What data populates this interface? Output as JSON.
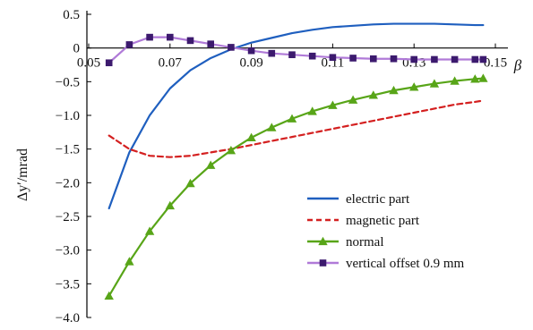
{
  "chart_data": {
    "type": "line",
    "xlabel": "β",
    "ylabel": "Δy′/mrad",
    "xlim": [
      0.05,
      0.15
    ],
    "ylim": [
      -4.0,
      0.5
    ],
    "x_ticks": [
      0.05,
      0.07,
      0.09,
      0.11,
      0.13,
      0.15
    ],
    "x_tick_labels": [
      "0.05",
      "0.07",
      "0.09",
      "0.11",
      "0.13",
      "0.15"
    ],
    "y_ticks": [
      0.5,
      0,
      -0.5,
      -1.0,
      -1.5,
      -2.0,
      -2.5,
      -3.0,
      -3.5,
      -4.0
    ],
    "y_tick_labels": [
      "0.5",
      "0",
      "−0.5",
      "−1.0",
      "−1.5",
      "−2.0",
      "−2.5",
      "−3.0",
      "−3.5",
      "−4.0"
    ],
    "grid": false,
    "legend_position": "lower-right",
    "series": [
      {
        "name": "electric part",
        "color": "#1f5fbf",
        "style": "solid",
        "marker": "none",
        "x": [
          0.055,
          0.06,
          0.065,
          0.07,
          0.075,
          0.08,
          0.085,
          0.09,
          0.095,
          0.1,
          0.105,
          0.11,
          0.115,
          0.12,
          0.125,
          0.13,
          0.135,
          0.14,
          0.145,
          0.147
        ],
        "y": [
          -2.38,
          -1.55,
          -1.0,
          -0.6,
          -0.33,
          -0.15,
          -0.02,
          0.08,
          0.15,
          0.22,
          0.27,
          0.31,
          0.33,
          0.35,
          0.36,
          0.36,
          0.36,
          0.35,
          0.34,
          0.34
        ]
      },
      {
        "name": "magnetic part",
        "color": "#d42020",
        "style": "dashed",
        "marker": "none",
        "x": [
          0.055,
          0.06,
          0.065,
          0.07,
          0.075,
          0.08,
          0.085,
          0.09,
          0.095,
          0.1,
          0.105,
          0.11,
          0.115,
          0.12,
          0.125,
          0.13,
          0.135,
          0.14,
          0.145,
          0.147
        ],
        "y": [
          -1.3,
          -1.5,
          -1.6,
          -1.62,
          -1.6,
          -1.55,
          -1.5,
          -1.44,
          -1.38,
          -1.32,
          -1.26,
          -1.2,
          -1.14,
          -1.08,
          -1.02,
          -0.96,
          -0.9,
          -0.84,
          -0.8,
          -0.78
        ]
      },
      {
        "name": "normal",
        "color": "#58a518",
        "style": "solid",
        "marker": "triangle",
        "x": [
          0.055,
          0.06,
          0.065,
          0.07,
          0.075,
          0.08,
          0.085,
          0.09,
          0.095,
          0.1,
          0.105,
          0.11,
          0.115,
          0.12,
          0.125,
          0.13,
          0.135,
          0.14,
          0.145,
          0.147
        ],
        "y": [
          -3.68,
          -3.17,
          -2.72,
          -2.34,
          -2.01,
          -1.74,
          -1.52,
          -1.33,
          -1.18,
          -1.05,
          -0.94,
          -0.85,
          -0.77,
          -0.7,
          -0.63,
          -0.58,
          -0.53,
          -0.49,
          -0.46,
          -0.45
        ]
      },
      {
        "name": "vertical offset 0.9 mm",
        "color": "#3c1a6e",
        "style": "solid",
        "marker": "square",
        "line_color": "#b07ad8",
        "x": [
          0.055,
          0.06,
          0.065,
          0.07,
          0.075,
          0.08,
          0.085,
          0.09,
          0.095,
          0.1,
          0.105,
          0.11,
          0.115,
          0.12,
          0.125,
          0.13,
          0.135,
          0.14,
          0.145,
          0.147
        ],
        "y": [
          -0.22,
          0.05,
          0.16,
          0.16,
          0.11,
          0.06,
          0.01,
          -0.04,
          -0.08,
          -0.1,
          -0.12,
          -0.14,
          -0.15,
          -0.16,
          -0.16,
          -0.17,
          -0.17,
          -0.17,
          -0.17,
          -0.17
        ]
      }
    ]
  }
}
